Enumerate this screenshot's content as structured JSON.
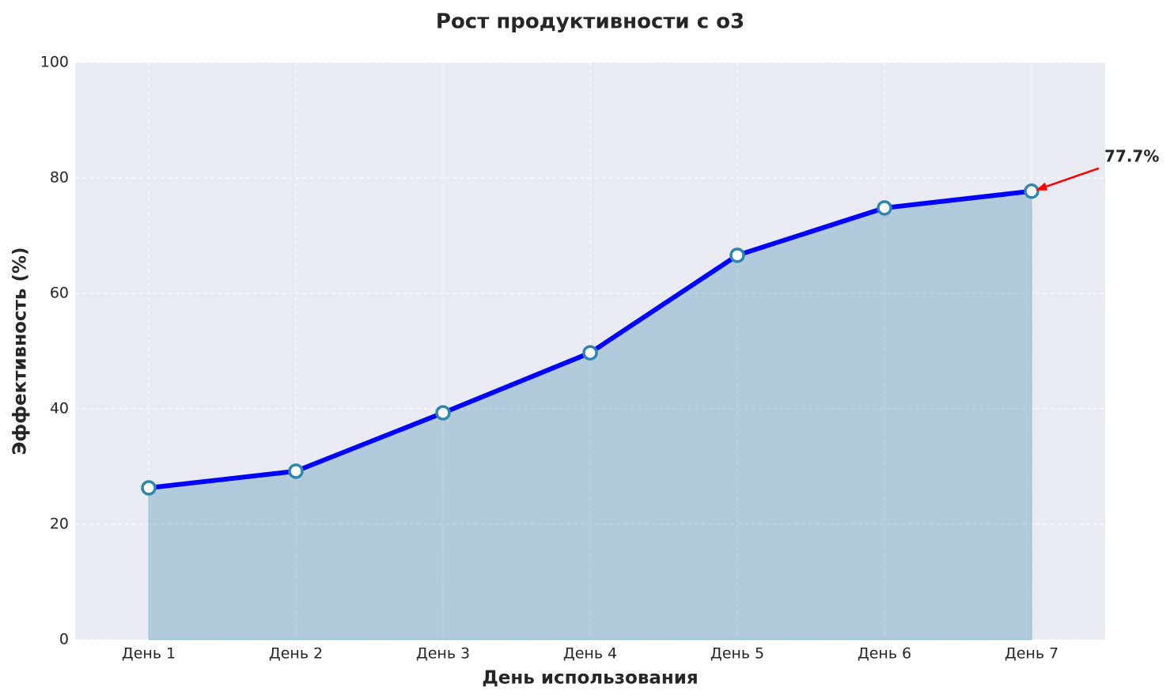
{
  "chart_data": {
    "type": "line",
    "title": "Рост продуктивности с o3",
    "xlabel": "День использования",
    "ylabel": "Эффективность (%)",
    "categories": [
      "День 1",
      "День 2",
      "День 3",
      "День 4",
      "День 5",
      "День 6",
      "День 7"
    ],
    "series": [
      {
        "color": "#0000ff",
        "marker_color": "#2e86ab",
        "fill_color": "#2e86ab",
        "values": [
          26.3,
          29.2,
          39.3,
          49.7,
          66.6,
          74.8,
          77.7
        ],
        "value_labels": [
          null,
          null,
          null,
          null,
          null,
          null,
          "77.7%"
        ]
      }
    ],
    "ylim": [
      0,
      100
    ],
    "yticks": [
      0,
      20,
      40,
      60,
      80,
      100
    ],
    "grid": true
  }
}
